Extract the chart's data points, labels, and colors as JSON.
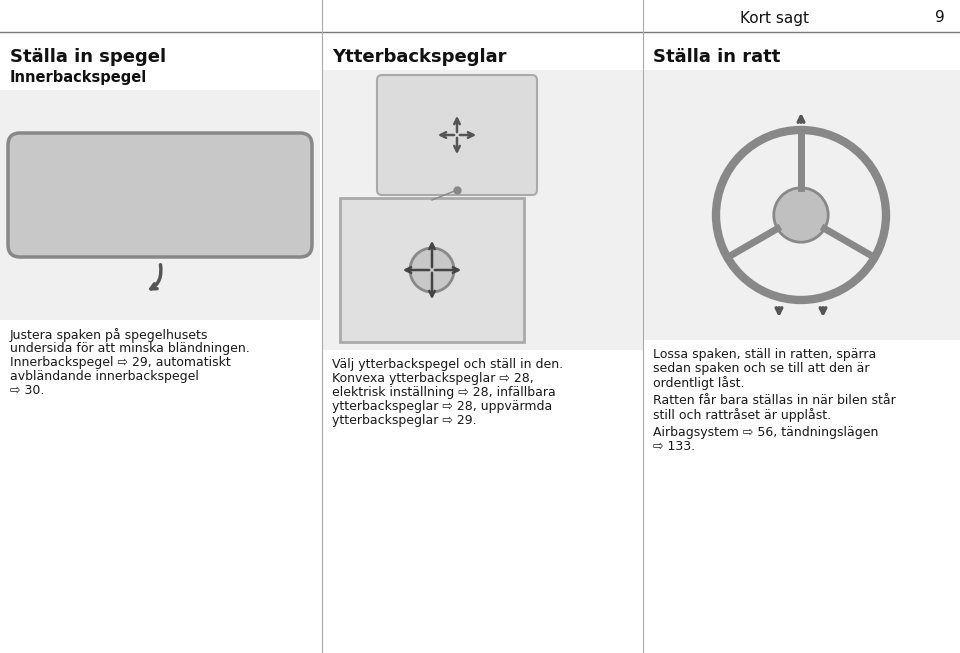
{
  "page_title": "Kort sagt",
  "page_number": "9",
  "background_color": "#ffffff",
  "separator_color": "#7a7a7a",
  "col1_header": "Ställa in spegel",
  "col1_subheader": "Innerbackspegel",
  "col1_body_lines": [
    "Justera spaken på spegelhusets",
    "undersida för att minska bländningen.",
    "Innerbackspegel ⇨ 29, automatiskt",
    "avbländande innerbackspegel",
    "⇨ 30."
  ],
  "col2_header": "Ytterbackspeglar",
  "col2_intro": "Välj ytterbackspegel och ställ in den.",
  "col2_body_lines": [
    "Konvexa ytterbackspeglar ⇨ 28,",
    "elektrisk inställning ⇨ 28, infällbara",
    "ytterbackspeglar ⇨ 28, uppvärmda",
    "ytterbackspeglar ⇨ 29."
  ],
  "col3_header": "Ställa in ratt",
  "col3_body_para1_lines": [
    "Lossa spaken, ställ in ratten, spärra",
    "sedan spaken och se till att den är",
    "ordentligt låst."
  ],
  "col3_body_para2_lines": [
    "Ratten får bara ställas in när bilen står",
    "still och rattråset är upplåst."
  ],
  "col3_body_para3_lines": [
    "Airbagsystem ⇨ 56, tändningslägen",
    "⇨ 133."
  ],
  "header_fontsize": 13,
  "subheader_fontsize": 10.5,
  "body_fontsize": 9,
  "title_fontsize": 11,
  "col_divider_color": "#aaaaaa",
  "text_color": "#1a1a1a",
  "header_color": "#111111",
  "img_face_color": "#e8e8e8",
  "img_edge_color": "#aaaaaa"
}
